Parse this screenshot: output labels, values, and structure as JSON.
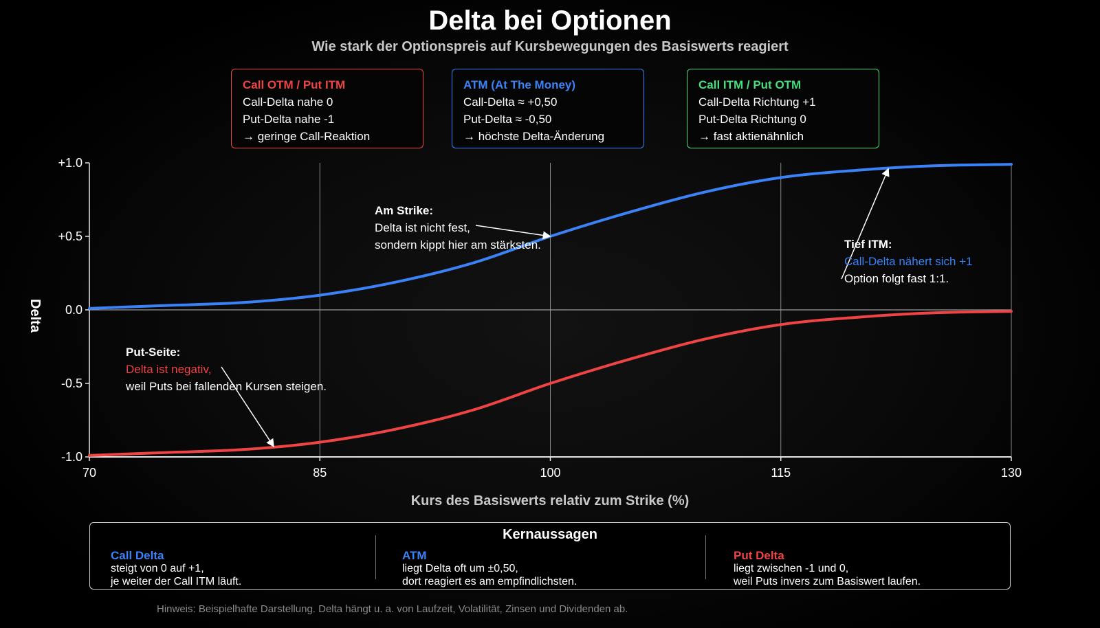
{
  "title": "Delta bei Optionen",
  "subtitle": "Wie stark der Optionspreis auf Kursbewegungen des Basiswerts reagiert",
  "info_boxes": [
    {
      "heading": "Call OTM / Put ITM",
      "color": "#ef4444",
      "lines": [
        "Call-Delta nahe 0",
        "Put-Delta nahe -1",
        "→ geringe Call-Reaktion"
      ]
    },
    {
      "heading": "ATM (At The Money)",
      "color": "#3b82f6",
      "lines": [
        "Call-Delta ≈ +0,50",
        "Put-Delta ≈ -0,50",
        "→ höchste Delta-Änderung"
      ]
    },
    {
      "heading": "Call ITM / Put OTM",
      "color": "#4ade80",
      "lines": [
        "Call-Delta Richtung +1",
        "Put-Delta Richtung 0",
        "→ fast aktienähnlich"
      ]
    }
  ],
  "annotations": {
    "strike": {
      "heading": "Am Strike:",
      "lines": [
        "Delta ist nicht fest,",
        "sondern kippt hier am stärksten."
      ]
    },
    "itm": {
      "heading": "Tief ITM:",
      "lines": [
        "Call-Delta nähert sich +1",
        "Option folgt fast 1:1."
      ]
    },
    "put": {
      "heading": "Put-Seite:",
      "lines": [
        "Delta ist negativ,",
        "weil Puts bei fallenden Kursen steigen."
      ]
    }
  },
  "summary": {
    "title": "Kernaussagen",
    "columns": [
      {
        "heading": "Call Delta",
        "color": "#3b82f6",
        "lines": [
          "steigt von 0 auf +1,",
          "je weiter der Call ITM läuft."
        ]
      },
      {
        "heading": "ATM",
        "color": "#3b82f6",
        "lines": [
          "liegt Delta oft um ±0,50,",
          "dort reagiert es am empfindlichsten."
        ]
      },
      {
        "heading": "Put Delta",
        "color": "#ef4444",
        "lines": [
          "liegt zwischen -1 und 0,",
          "weil Puts invers zum Basiswert laufen."
        ]
      }
    ]
  },
  "footnote": "Hinweis: Beispielhafte Darstellung. Delta hängt u. a. von Laufzeit, Volatilität, Zinsen und Dividenden ab.",
  "chart_data": {
    "type": "line",
    "xlabel": "Kurs des Basiswerts relativ zum Strike (%)",
    "ylabel": "Delta",
    "xlim": [
      70,
      130
    ],
    "ylim": [
      -1.0,
      1.0
    ],
    "xticks": [
      70,
      85,
      100,
      115,
      130
    ],
    "xtick_labels": [
      "70",
      "85",
      "100",
      "115",
      "130"
    ],
    "yticks": [
      1.0,
      0.5,
      0.0,
      -0.5,
      -1.0
    ],
    "ytick_labels": [
      "+1.0",
      "+0.5",
      "0.0",
      "-0.5",
      "-1.0"
    ],
    "grid": "vertical",
    "x": [
      70,
      75,
      80,
      85,
      90,
      95,
      100,
      105,
      110,
      115,
      120,
      125,
      130
    ],
    "series": [
      {
        "color": "#3b82f6",
        "values": [
          0.01,
          0.03,
          0.05,
          0.1,
          0.19,
          0.32,
          0.5,
          0.66,
          0.8,
          0.9,
          0.95,
          0.98,
          0.99
        ]
      },
      {
        "color": "#ef4444",
        "values": [
          -0.99,
          -0.97,
          -0.95,
          -0.9,
          -0.81,
          -0.68,
          -0.5,
          -0.34,
          -0.2,
          -0.1,
          -0.05,
          -0.02,
          -0.01
        ]
      }
    ]
  }
}
